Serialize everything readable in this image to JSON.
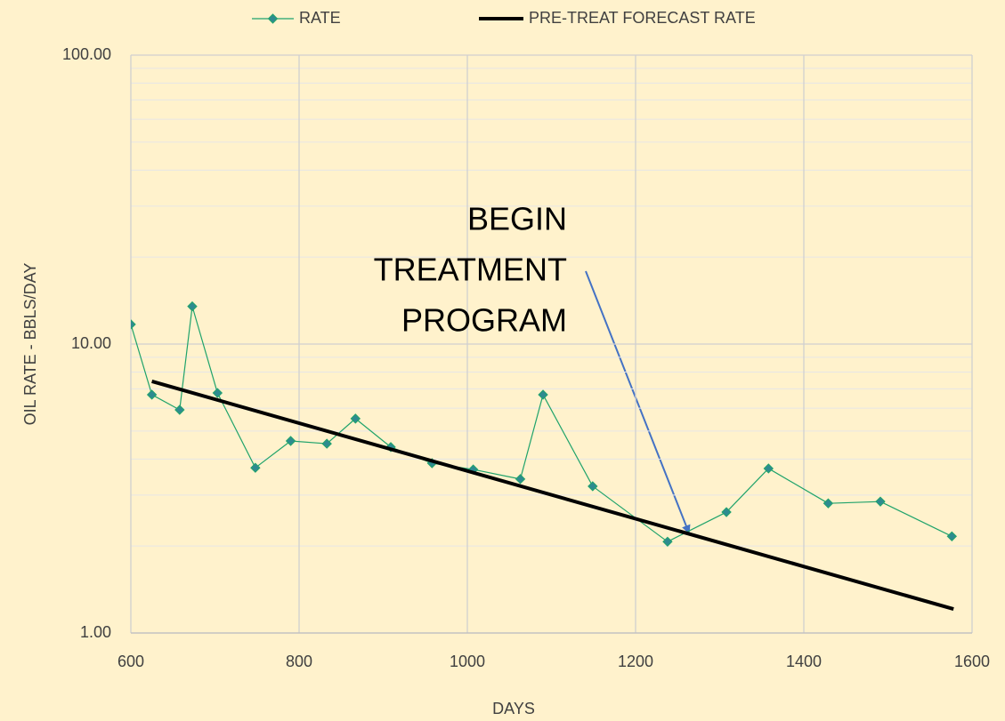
{
  "chart_data": {
    "type": "line",
    "xlabel": "DAYS",
    "ylabel": "OIL RATE - BBLS/DAY",
    "xlim": [
      600,
      1600
    ],
    "xticks": [
      600,
      800,
      1000,
      1200,
      1400,
      1600
    ],
    "ylim": [
      1,
      100
    ],
    "yticks": [
      {
        "value": 1,
        "label": "1.00"
      },
      {
        "value": 10,
        "label": "10.00"
      },
      {
        "value": 100,
        "label": "100.00"
      }
    ],
    "log_y": true,
    "grid": true,
    "minor_grid": true,
    "legend": "top",
    "annotation": [
      "BEGIN",
      "TREATMENT",
      "PROGRAM"
    ],
    "series": [
      {
        "name": "RATE",
        "color": "#1fa36b",
        "marker_color": "#2e8b8f",
        "marker": "diamond",
        "x": [
          600,
          625,
          658,
          673,
          703,
          748,
          790,
          833,
          867,
          909,
          958,
          1007,
          1063,
          1090,
          1149,
          1238,
          1308,
          1358,
          1429,
          1491,
          1576
        ],
        "values": [
          11.7,
          6.68,
          5.92,
          13.5,
          6.77,
          3.73,
          4.62,
          4.52,
          5.52,
          4.4,
          3.87,
          3.68,
          3.41,
          6.68,
          3.22,
          2.07,
          2.62,
          3.71,
          2.81,
          2.85,
          2.16
        ]
      },
      {
        "name": "PRE-TREAT FORECAST RATE",
        "color": "#000000",
        "marker": "none",
        "x": [
          625,
          1578
        ],
        "values": [
          7.43,
          1.21
        ]
      }
    ]
  }
}
